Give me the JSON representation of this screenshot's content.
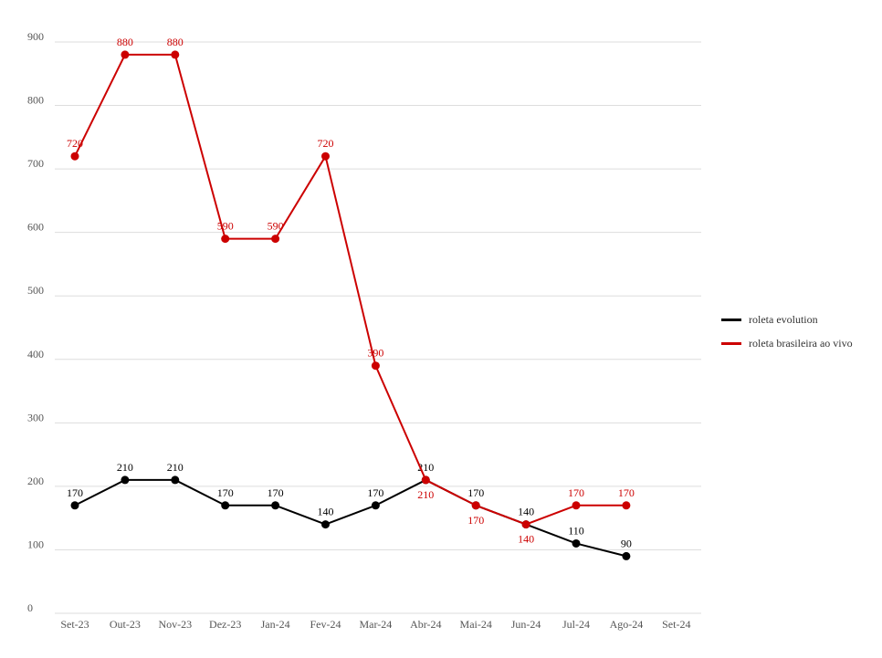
{
  "chart_data": {
    "type": "line",
    "categories": [
      "Set-23",
      "Out-23",
      "Nov-23",
      "Dez-23",
      "Jan-24",
      "Fev-24",
      "Mar-24",
      "Abr-24",
      "Mai-24",
      "Jun-24",
      "Jul-24",
      "Ago-24",
      "Set-24"
    ],
    "series": [
      {
        "name": "roleta evolution",
        "color": "#000000",
        "values": [
          170,
          210,
          210,
          170,
          170,
          140,
          170,
          210,
          170,
          140,
          110,
          90,
          null
        ]
      },
      {
        "name": "roleta brasileira ao vivo",
        "color": "#cc0000",
        "values": [
          720,
          880,
          880,
          590,
          590,
          720,
          390,
          210,
          170,
          140,
          170,
          170,
          null
        ]
      }
    ],
    "yticks": [
      0,
      100,
      200,
      300,
      400,
      500,
      600,
      700,
      800,
      900
    ],
    "ylim": [
      0,
      900
    ],
    "grid": true,
    "legend_position": "right"
  }
}
